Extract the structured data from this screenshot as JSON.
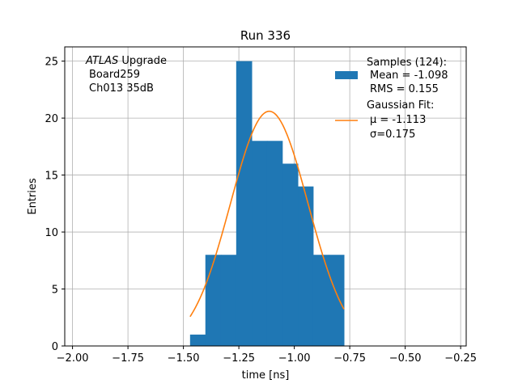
{
  "chart_data": {
    "type": "bar",
    "title": "Run 336",
    "xlabel": "time [ns]",
    "ylabel": "Entries",
    "xlim": [
      -2.035,
      -0.225
    ],
    "ylim": [
      0,
      26.25
    ],
    "grid": true,
    "x_ticks": [
      -2.0,
      -1.75,
      -1.5,
      -1.25,
      -1.0,
      -0.75,
      -0.5,
      -0.25
    ],
    "x_tick_labels": [
      "−2.00",
      "−1.75",
      "−1.50",
      "−1.25",
      "−1.00",
      "−0.75",
      "−0.50",
      "−0.25"
    ],
    "y_ticks": [
      0,
      5,
      10,
      15,
      20,
      25
    ],
    "y_tick_labels": [
      "0",
      "5",
      "10",
      "15",
      "20",
      "25"
    ],
    "histogram": {
      "name": "Samples (124):",
      "color": "#1f77b4",
      "bin_edges": [
        -1.47,
        -1.401,
        -1.331,
        -1.262,
        -1.192,
        -1.123,
        -1.054,
        -0.984,
        -0.915,
        -0.845,
        -0.776
      ],
      "counts": [
        1,
        8,
        8,
        25,
        18,
        18,
        16,
        14,
        8,
        8
      ]
    },
    "fit": {
      "name": "Gaussian Fit:",
      "color": "#ff7f0e",
      "mu": -1.113,
      "sigma": 0.175,
      "amplitude": 20.6,
      "x_range": [
        -1.47,
        -0.776
      ]
    },
    "annotation_lines": [
      "ATLAS",
      "Upgrade",
      "Board259",
      "Ch013 35dB"
    ],
    "legend": {
      "placement": "top-right",
      "samples_lines": [
        "Samples (124):",
        "Mean = -1.098",
        "RMS = 0.155"
      ],
      "fit_lines": [
        "Gaussian Fit:",
        "μ = -1.113",
        "σ=0.175"
      ]
    }
  }
}
